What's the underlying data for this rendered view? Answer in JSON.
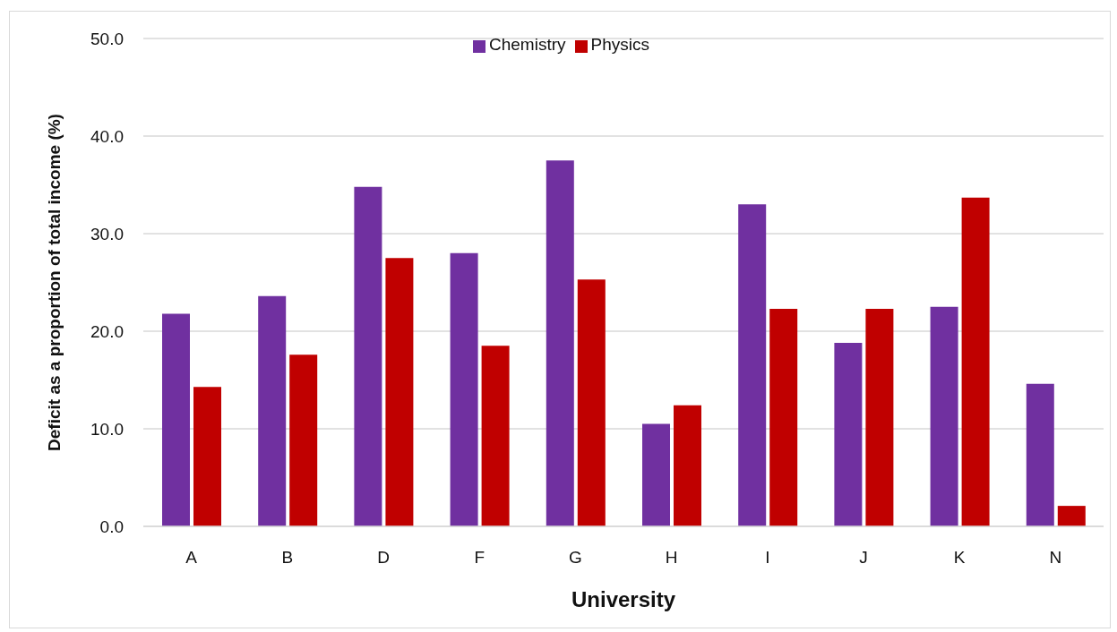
{
  "chart_data": {
    "type": "bar",
    "xlabel": "University",
    "ylabel": "Deficit as a proportion of total income (%)",
    "categories": [
      "A",
      "B",
      "D",
      "F",
      "G",
      "H",
      "I",
      "J",
      "K",
      "N"
    ],
    "series": [
      {
        "name": "Chemistry",
        "color": "#7030a0",
        "values": [
          21.8,
          23.6,
          34.8,
          28.0,
          37.5,
          10.5,
          33.0,
          18.8,
          22.5,
          14.6
        ]
      },
      {
        "name": "Physics",
        "color": "#c00000",
        "values": [
          14.3,
          17.6,
          27.5,
          18.5,
          25.3,
          12.4,
          22.3,
          22.3,
          33.7,
          2.1
        ]
      }
    ],
    "ylim": [
      0,
      50
    ],
    "yticks": [
      {
        "value": 0,
        "label": "0.0"
      },
      {
        "value": 10,
        "label": "10.0"
      },
      {
        "value": 20,
        "label": "20.0"
      },
      {
        "value": 30,
        "label": "30.0"
      },
      {
        "value": 40,
        "label": "40.0"
      },
      {
        "value": 50,
        "label": "50.0"
      }
    ],
    "grid": "y",
    "legend": "top"
  }
}
